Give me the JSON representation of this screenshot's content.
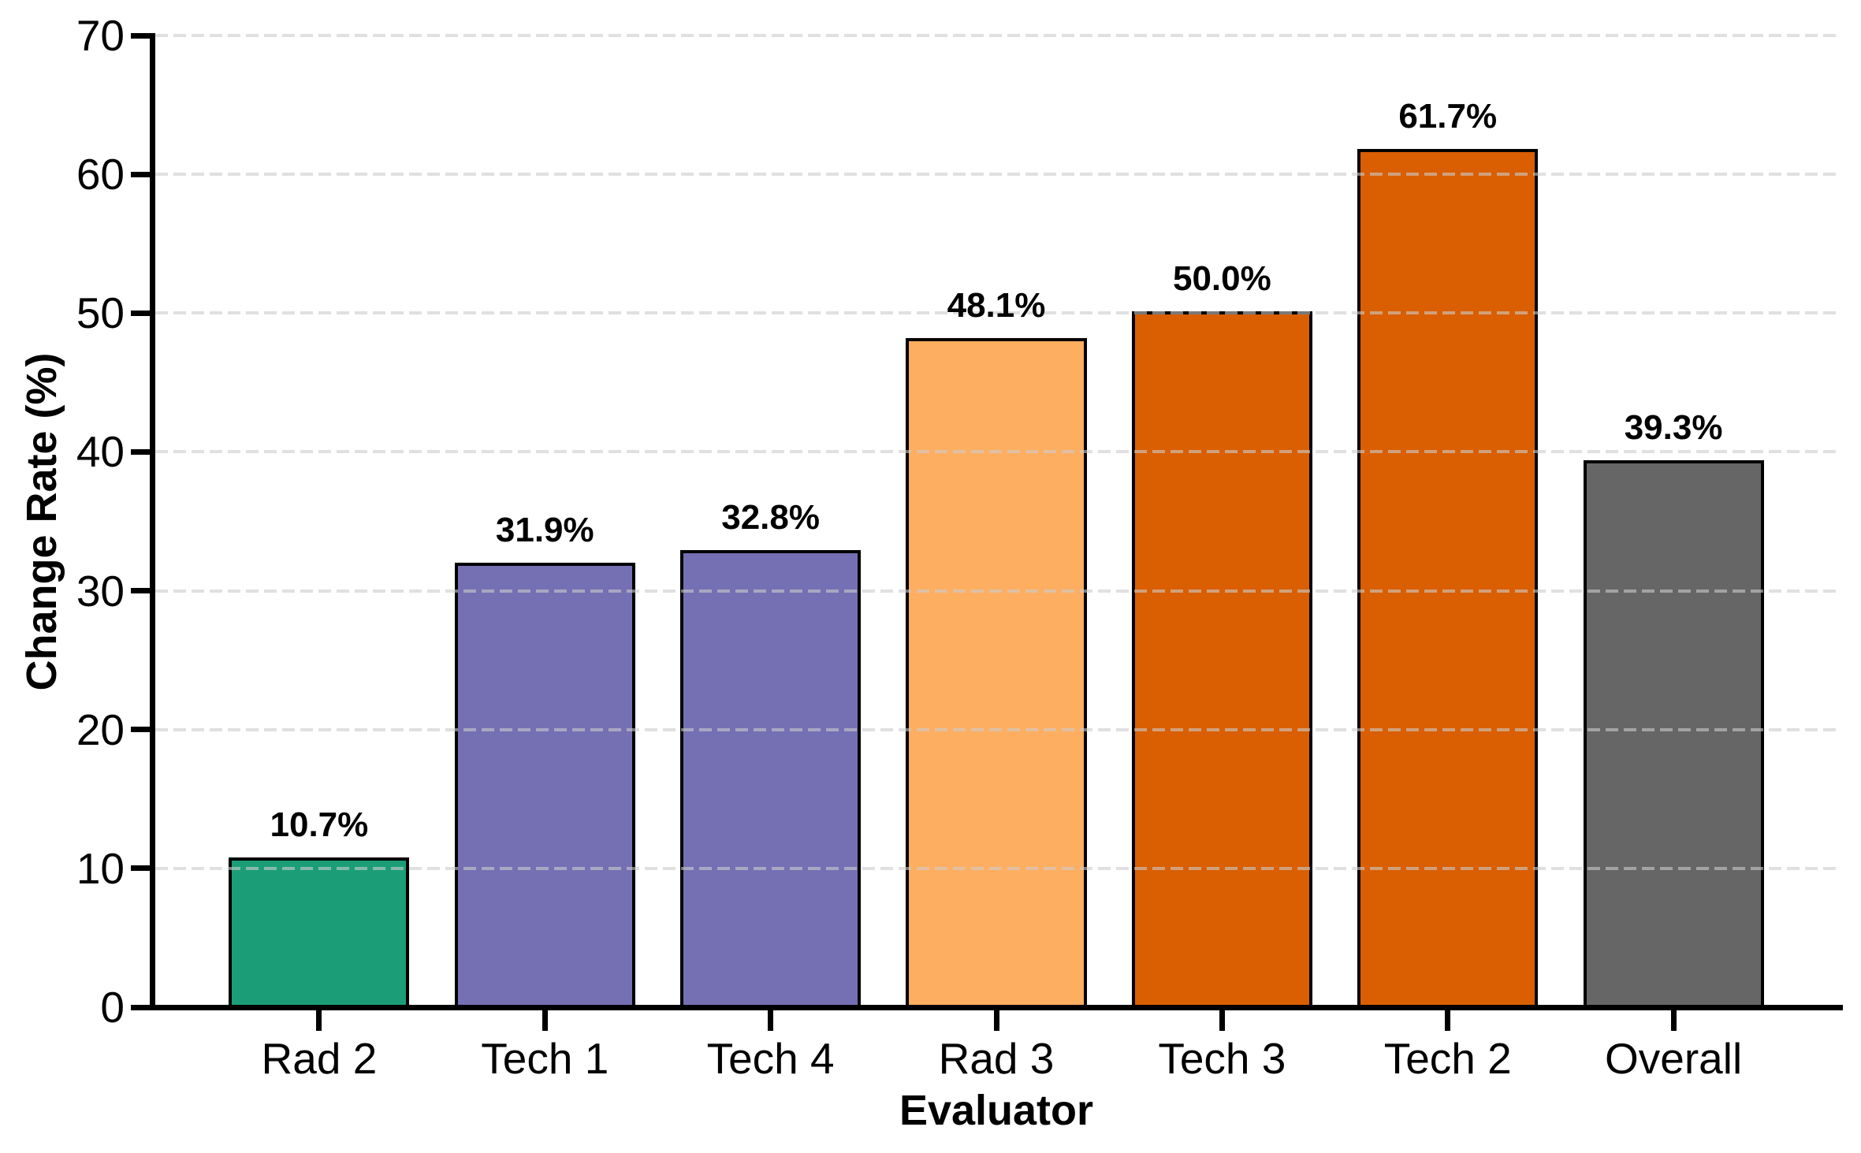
{
  "chart_data": {
    "type": "bar",
    "title": "",
    "xlabel": "Evaluator",
    "ylabel": "Change Rate (%)",
    "categories": [
      "Rad 2",
      "Tech 1",
      "Tech 4",
      "Rad 3",
      "Tech 3",
      "Tech 2",
      "Overall"
    ],
    "values": [
      10.7,
      31.9,
      32.8,
      48.1,
      50.0,
      61.7,
      39.3
    ],
    "value_labels": [
      "10.7%",
      "31.9%",
      "32.8%",
      "48.1%",
      "50.0%",
      "61.7%",
      "39.3%"
    ],
    "bar_colors": [
      "#1b9e77",
      "#7570b3",
      "#7570b3",
      "#fdae61",
      "#d95f02",
      "#d95f02",
      "#666666"
    ],
    "bar_edge_color": "#000000",
    "ylim": [
      0,
      70
    ],
    "yticks": [
      0,
      10,
      20,
      30,
      40,
      50,
      60,
      70
    ],
    "grid": "horizontal-dashed",
    "gridline_color": "#cccccc",
    "axis_color": "#000000",
    "background_color": "#ffffff",
    "legend": "none"
  }
}
